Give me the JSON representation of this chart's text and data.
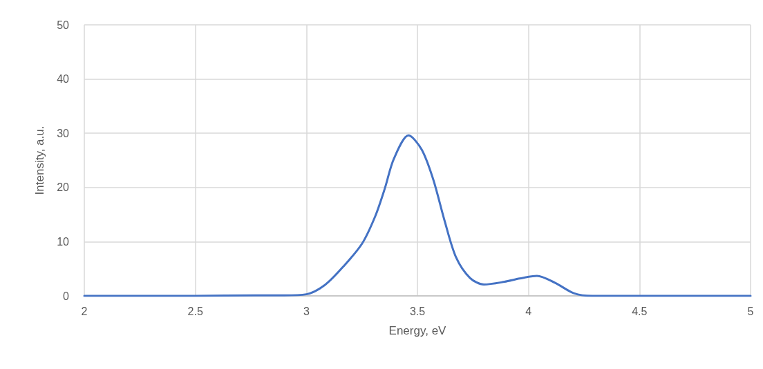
{
  "chart_data": {
    "type": "line",
    "xlabel": "Energy, eV",
    "ylabel": "Intensity, a.u.",
    "xlim": [
      2,
      5
    ],
    "xticks": [
      2,
      2.5,
      3,
      3.5,
      4,
      4.5,
      5
    ],
    "ylim": [
      0,
      50
    ],
    "yticks": [
      0,
      10,
      20,
      30,
      40,
      50
    ],
    "grid": true,
    "marker": "none",
    "line_style": "solid",
    "series": [
      {
        "color": "#4472c4",
        "x": [
          2,
          2.5,
          2.77,
          2.9,
          3.0,
          3.083,
          3.166,
          3.25,
          3.31,
          3.353,
          3.394,
          3.46,
          3.519,
          3.571,
          3.622,
          3.674,
          3.737,
          3.799,
          3.892,
          3.96,
          4.038,
          4.12,
          4.204,
          4.287,
          4.5,
          5
        ],
        "values": [
          0,
          0,
          0.1,
          0.1,
          0.3,
          2.0,
          5.4,
          9.6,
          14.7,
          19.8,
          25.3,
          29.6,
          27.0,
          21.5,
          13.9,
          7.1,
          3.3,
          2.1,
          2.6,
          3.2,
          3.7,
          2.4,
          0.5,
          0,
          0,
          0
        ]
      }
    ]
  }
}
